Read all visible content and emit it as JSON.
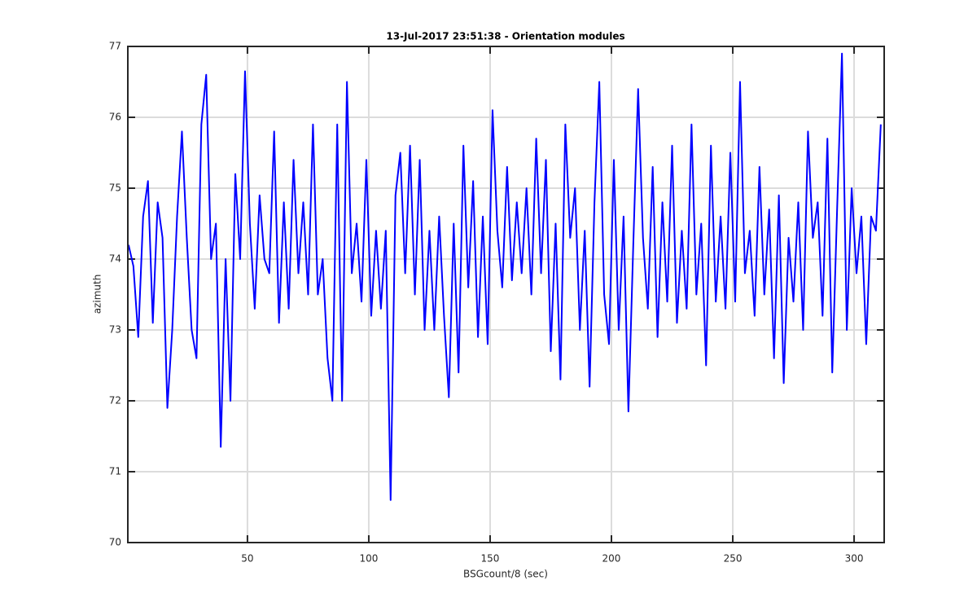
{
  "chart_data": {
    "type": "line",
    "title": "13-Jul-2017 23:51:38 - Orientation modules",
    "xlabel": "BSGcount/8 (sec)",
    "ylabel": "azimuth",
    "xlim": [
      0.7,
      312.4
    ],
    "ylim": [
      70,
      77
    ],
    "xticks": [
      50,
      100,
      150,
      200,
      250,
      300
    ],
    "yticks": [
      70,
      71,
      72,
      73,
      74,
      75,
      76,
      77
    ],
    "grid": true,
    "x": [
      1,
      3,
      5,
      7,
      9,
      11,
      13,
      15,
      17,
      19,
      21,
      23,
      25,
      27,
      29,
      31,
      33,
      35,
      37,
      39,
      41,
      43,
      45,
      47,
      49,
      51,
      53,
      55,
      57,
      59,
      61,
      63,
      65,
      67,
      69,
      71,
      73,
      75,
      77,
      79,
      81,
      83,
      85,
      87,
      89,
      91,
      93,
      95,
      97,
      99,
      101,
      103,
      105,
      107,
      109,
      111,
      113,
      115,
      117,
      119,
      121,
      123,
      125,
      127,
      129,
      131,
      133,
      135,
      137,
      139,
      141,
      143,
      145,
      147,
      149,
      151,
      153,
      155,
      157,
      159,
      161,
      163,
      165,
      167,
      169,
      171,
      173,
      175,
      177,
      179,
      181,
      183,
      185,
      187,
      189,
      191,
      193,
      195,
      197,
      199,
      201,
      203,
      205,
      207,
      209,
      211,
      213,
      215,
      217,
      219,
      221,
      223,
      225,
      227,
      229,
      231,
      233,
      235,
      237,
      239,
      241,
      243,
      245,
      247,
      249,
      251,
      253,
      255,
      257,
      259,
      261,
      263,
      265,
      267,
      269,
      271,
      273,
      275,
      277,
      279,
      281,
      283,
      285,
      287,
      289,
      291,
      293,
      295,
      297,
      299,
      301,
      303,
      305,
      307,
      309,
      311
    ],
    "series": [
      {
        "name": "azimuth",
        "color": "#0000ff",
        "values": [
          74.2,
          73.9,
          72.9,
          74.6,
          75.1,
          73.1,
          74.8,
          74.3,
          71.9,
          73.0,
          74.6,
          75.8,
          74.3,
          73.0,
          72.6,
          75.9,
          76.6,
          74.0,
          74.5,
          71.35,
          74.0,
          72.0,
          75.2,
          74.0,
          76.65,
          74.5,
          73.3,
          74.9,
          74.0,
          73.8,
          75.8,
          73.1,
          74.8,
          73.3,
          75.4,
          73.8,
          74.8,
          73.5,
          75.9,
          73.5,
          74.0,
          72.6,
          72.0,
          75.9,
          72.0,
          76.5,
          73.8,
          74.5,
          73.4,
          75.4,
          73.2,
          74.4,
          73.3,
          74.4,
          70.6,
          74.9,
          75.5,
          73.8,
          75.6,
          73.5,
          75.4,
          73.0,
          74.4,
          73.0,
          74.6,
          73.2,
          72.05,
          74.5,
          72.4,
          75.6,
          73.6,
          75.1,
          72.9,
          74.6,
          72.8,
          76.1,
          74.4,
          73.6,
          75.3,
          73.7,
          74.8,
          73.8,
          75.0,
          73.5,
          75.7,
          73.8,
          75.4,
          72.7,
          74.5,
          72.3,
          75.9,
          74.3,
          75.0,
          73.0,
          74.4,
          72.2,
          74.8,
          76.5,
          73.5,
          72.8,
          75.4,
          73.0,
          74.6,
          71.85,
          74.2,
          76.4,
          74.3,
          73.3,
          75.3,
          72.9,
          74.8,
          73.4,
          75.6,
          73.1,
          74.4,
          73.3,
          75.9,
          73.5,
          74.5,
          72.5,
          75.6,
          73.4,
          74.6,
          73.3,
          75.5,
          73.4,
          76.5,
          73.8,
          74.4,
          73.2,
          75.3,
          73.5,
          74.7,
          72.6,
          74.9,
          72.25,
          74.3,
          73.4,
          74.8,
          73.0,
          75.8,
          74.3,
          74.8,
          73.2,
          75.7,
          72.4,
          74.7,
          76.9,
          73.0,
          75.0,
          73.8,
          74.6,
          72.8,
          74.6,
          74.4,
          75.9
        ]
      }
    ]
  }
}
